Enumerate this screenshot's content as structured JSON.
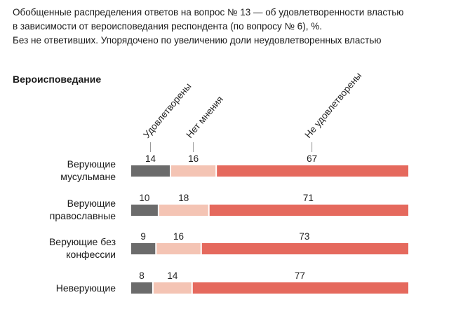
{
  "title_lines": [
    "Обобщенные распределения ответов на вопрос № 13 — об удовлетворенности властью",
    "в зависимости от вероисповедания респондента (по вопросу № 6), %.",
    "Без не ответивших. Упорядочено по увеличению доли неудовлетворенных властью"
  ],
  "section_label": "Вероисповедание",
  "chart_data": {
    "type": "bar",
    "stacked": true,
    "orientation": "horizontal",
    "categories": [
      [
        "Верующие",
        "мусульмане"
      ],
      [
        "Верующие",
        "православные"
      ],
      [
        "Верующие без",
        "конфессии"
      ],
      [
        "Неверующие"
      ]
    ],
    "series": [
      {
        "name": "Удовлетворены",
        "color": "#6b6b6b",
        "values": [
          14,
          10,
          9,
          8
        ]
      },
      {
        "name": "Нет мнения",
        "color": "#f4c4b4",
        "values": [
          16,
          18,
          16,
          14
        ]
      },
      {
        "name": "Не удовлетворены",
        "color": "#e5695d",
        "values": [
          67,
          71,
          73,
          77
        ]
      }
    ],
    "legend": "top-rotated-labels"
  }
}
